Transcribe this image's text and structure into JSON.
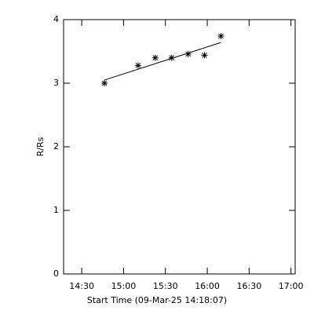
{
  "chart_data": {
    "type": "scatter",
    "xlabel": "Start Time (09-Mar-25 14:18:07)",
    "ylabel": "R/Rs",
    "xlim": [
      857,
      1023
    ],
    "ylim": [
      0,
      4
    ],
    "xticks": [
      {
        "value": 870,
        "label": "14:30"
      },
      {
        "value": 900,
        "label": "15:00"
      },
      {
        "value": 930,
        "label": "15:30"
      },
      {
        "value": 960,
        "label": "16:00"
      },
      {
        "value": 990,
        "label": "16:30"
      },
      {
        "value": 1020,
        "label": "17:00"
      }
    ],
    "yticks": [
      0,
      1,
      2,
      3,
      4
    ],
    "series": [
      {
        "style": "asterisk",
        "color": "#000000",
        "x": [
          886.3,
          910.4,
          922.7,
          934.5,
          946.3,
          958,
          969.8
        ],
        "values": [
          3.0,
          3.28,
          3.4,
          3.4,
          3.46,
          3.44,
          3.74
        ]
      },
      {
        "style": "line",
        "color": "#000000",
        "x": [
          886.3,
          969.8
        ],
        "values": [
          3.05,
          3.64
        ]
      }
    ]
  }
}
